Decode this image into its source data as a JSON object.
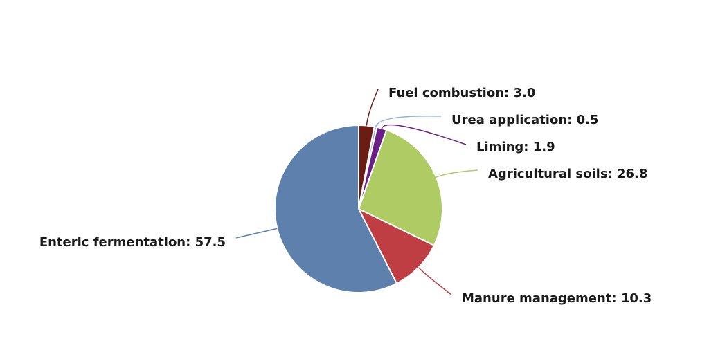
{
  "chart_data": {
    "type": "pie",
    "title": "",
    "slices": [
      {
        "label": "Fuel combustion",
        "value": 3.0,
        "color": "#6b1d14",
        "display": "Fuel combustion: 3.0"
      },
      {
        "label": "Urea application",
        "value": 0.5,
        "color": "#8fb0dd",
        "display": "Urea application: 0.5"
      },
      {
        "label": "Liming",
        "value": 1.9,
        "color": "#6a1f86",
        "display": "Liming: 1.9"
      },
      {
        "label": "Agricultural soils",
        "value": 26.8,
        "color": "#afcb63",
        "display": "Agricultural soils: 26.8"
      },
      {
        "label": "Manure management",
        "value": 10.3,
        "color": "#bf3e44",
        "display": "Manure management: 10.3"
      },
      {
        "label": "Enteric fermentation",
        "value": 57.5,
        "color": "#5e80ad",
        "display": "Enteric fermentation: 57.5"
      }
    ],
    "start_angle": "12 o'clock",
    "direction": "clockwise",
    "legend": "none",
    "data_labels": "outside with leader lines"
  }
}
